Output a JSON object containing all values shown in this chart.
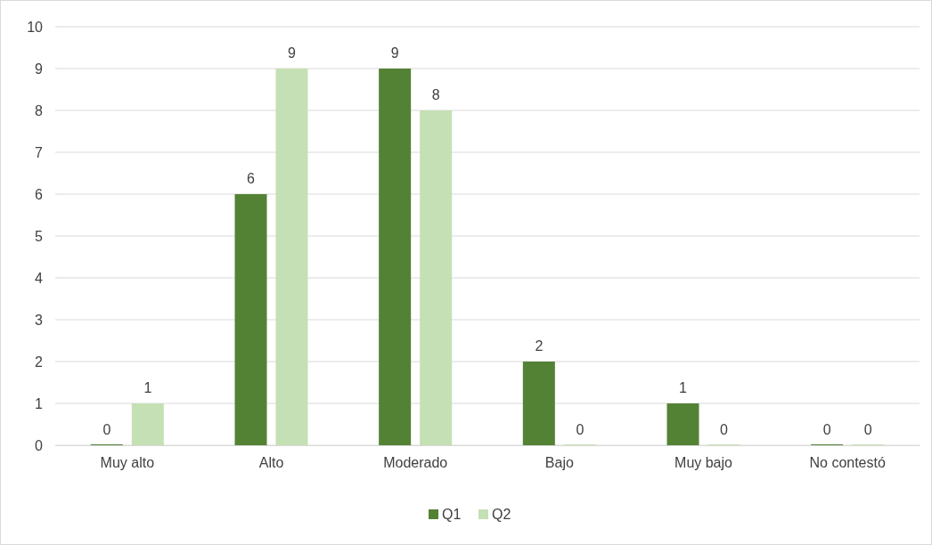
{
  "chart_data": {
    "type": "bar",
    "categories": [
      "Muy alto",
      "Alto",
      "Moderado",
      "Bajo",
      "Muy bajo",
      "No contestó"
    ],
    "series": [
      {
        "name": "Q1",
        "color": "#548235",
        "values": [
          0,
          6,
          9,
          2,
          1,
          0
        ]
      },
      {
        "name": "Q2",
        "color": "#c5e0b4",
        "values": [
          1,
          9,
          8,
          0,
          0,
          0
        ]
      }
    ],
    "ylim": [
      0,
      10
    ],
    "yticks": [
      0,
      1,
      2,
      3,
      4,
      5,
      6,
      7,
      8,
      9,
      10
    ],
    "grid": "y",
    "legend": "bottom",
    "data_labels": true
  }
}
